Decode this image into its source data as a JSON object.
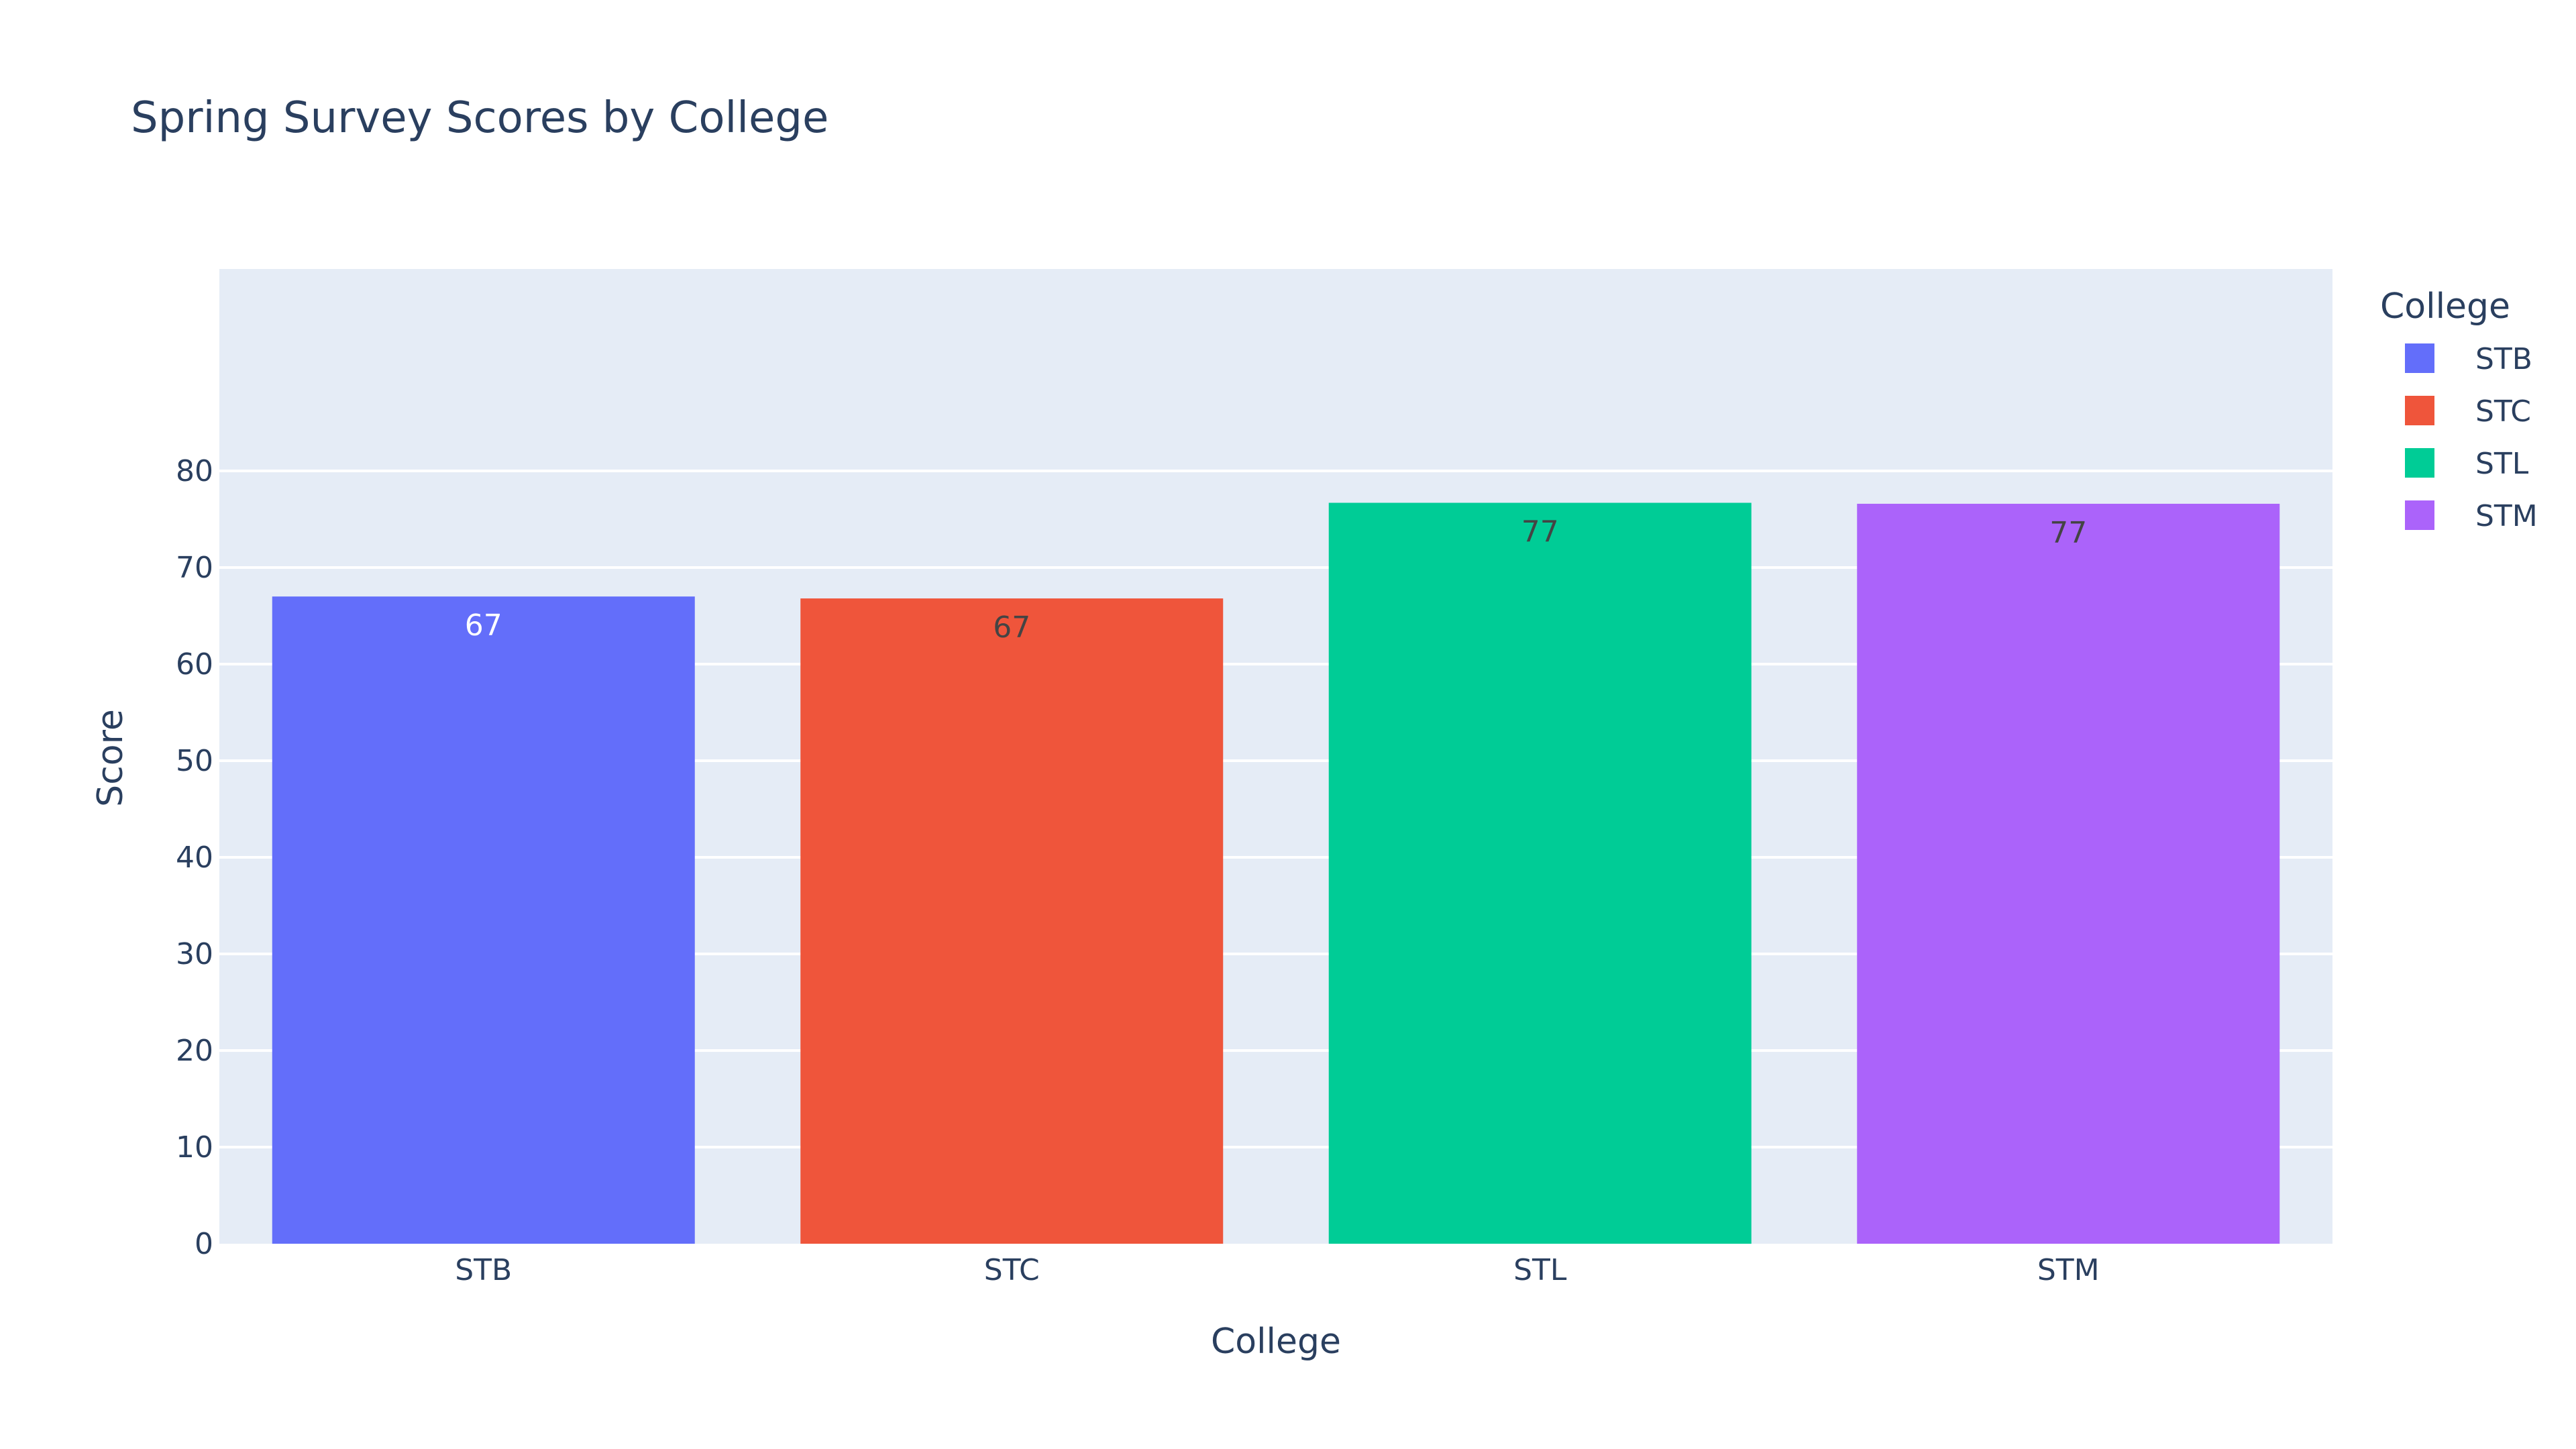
{
  "chart_data": {
    "type": "bar",
    "title": "Spring Survey Scores by College",
    "xlabel": "College",
    "ylabel": "Score",
    "categories": [
      "STB",
      "STC",
      "STL",
      "STM"
    ],
    "values": [
      67.0,
      66.8,
      76.7,
      76.6
    ],
    "value_labels": [
      "67",
      "67",
      "77",
      "77"
    ],
    "colors": [
      "#636efa",
      "#ef553b",
      "#00cc96",
      "#ab63fa"
    ],
    "label_colors": [
      "#ffffff",
      "#444444",
      "#444444",
      "#444444"
    ],
    "ylim": [
      0,
      80
    ],
    "yticks": [
      0,
      10,
      20,
      30,
      40,
      50,
      60,
      70,
      80
    ],
    "grid": true,
    "plot_background": "#e5ecf6",
    "legend": {
      "title": "College",
      "placement": "right",
      "entries": [
        "STB",
        "STC",
        "STL",
        "STM"
      ]
    }
  }
}
